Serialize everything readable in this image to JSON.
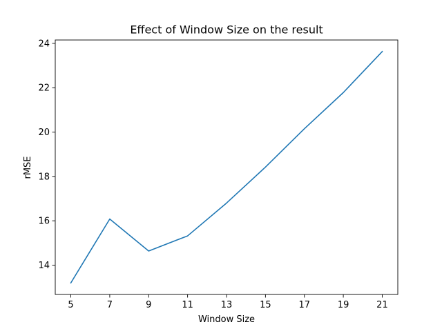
{
  "chart_data": {
    "type": "line",
    "title": "Effect of Window Size on the result",
    "xlabel": "Window Size",
    "ylabel": "rMSE",
    "x": [
      5,
      7,
      9,
      11,
      13,
      15,
      17,
      19,
      21
    ],
    "xticks": [
      "5",
      "7",
      "9",
      "11",
      "13",
      "15",
      "17",
      "19",
      "21"
    ],
    "yticks": [
      "14",
      "16",
      "18",
      "20",
      "22",
      "24"
    ],
    "xlim": [
      4.2,
      21.8
    ],
    "ylim": [
      12.68,
      24.15
    ],
    "grid": false,
    "series": [
      {
        "values": [
          13.2,
          16.08,
          14.64,
          15.32,
          16.8,
          18.42,
          20.15,
          21.78,
          23.63
        ],
        "color": "#1f77b4"
      }
    ]
  }
}
